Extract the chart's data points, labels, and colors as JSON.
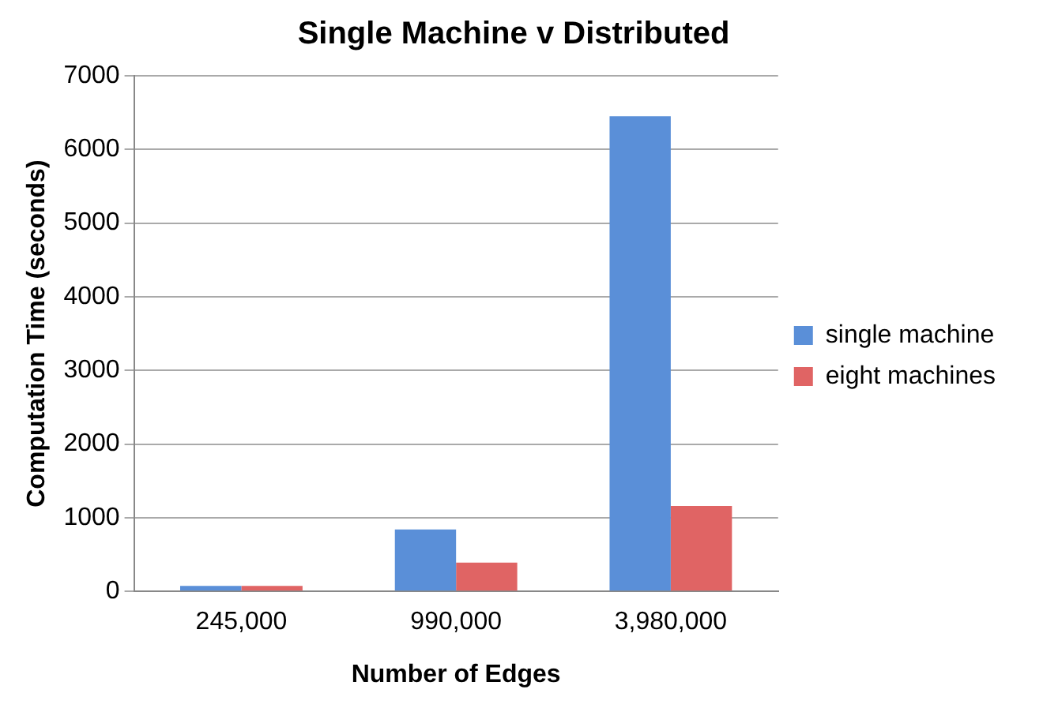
{
  "chart_data": {
    "type": "bar",
    "title": "Single Machine v Distributed",
    "xlabel": "Number of Edges",
    "ylabel": "Computation Time (seconds)",
    "categories": [
      "245,000",
      "990,000",
      "3,980,000"
    ],
    "series": [
      {
        "name": "single machine",
        "color": "#5a8fd8",
        "values": [
          75,
          840,
          6450
        ]
      },
      {
        "name": "eight machines",
        "color": "#e06464",
        "values": [
          75,
          390,
          1160
        ]
      }
    ],
    "ylim": [
      0,
      7000
    ],
    "yticks": [
      0,
      1000,
      2000,
      3000,
      4000,
      5000,
      6000,
      7000
    ],
    "grid": "y",
    "legend": "right"
  }
}
